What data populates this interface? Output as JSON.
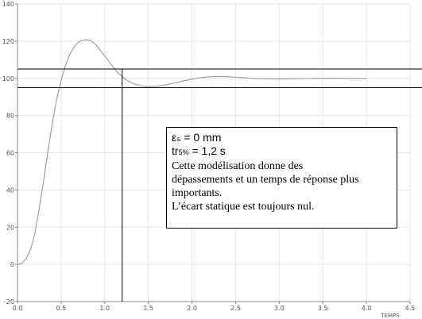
{
  "chart_data": {
    "type": "line",
    "title": "",
    "xlabel": "TEMPS",
    "ylabel": "",
    "xlim": [
      0,
      4.5
    ],
    "ylim": [
      -20,
      140
    ],
    "grid": true,
    "x_ticks": [
      "0.0",
      "0.5",
      "1.0",
      "1.5",
      "2.0",
      "2.5",
      "3.0",
      "3.5",
      "4.0",
      "4.5"
    ],
    "y_ticks": [
      "-20",
      "0",
      "20",
      "40",
      "60",
      "80",
      "100",
      "120",
      "140"
    ],
    "series": [
      {
        "color": "#a0a0a0",
        "x": [
          0,
          0.05,
          0.1,
          0.15,
          0.2,
          0.25,
          0.3,
          0.35,
          0.4,
          0.45,
          0.5,
          0.55,
          0.6,
          0.65,
          0.7,
          0.75,
          0.8,
          0.85,
          0.9,
          0.95,
          1.0,
          1.05,
          1.1,
          1.15,
          1.2,
          1.25,
          1.3,
          1.35,
          1.4,
          1.45,
          1.5,
          1.6,
          1.7,
          1.8,
          1.9,
          2.0,
          2.1,
          2.2,
          2.3,
          2.4,
          2.5,
          2.6,
          2.7,
          2.8,
          3.0,
          3.2,
          3.4,
          3.6,
          3.8,
          4.0
        ],
        "y": [
          0,
          0.5,
          3,
          8,
          17,
          30,
          45,
          61,
          76,
          89,
          99,
          107,
          113,
          117,
          119.5,
          120.5,
          120.8,
          120,
          118,
          115,
          112,
          109,
          106,
          103,
          101,
          99,
          97.8,
          96.8,
          96.2,
          95.8,
          95.7,
          95.8,
          96.5,
          97.5,
          98.6,
          99.6,
          100.4,
          100.8,
          101,
          100.9,
          100.6,
          100.3,
          100,
          99.8,
          99.7,
          99.8,
          100,
          100.1,
          100,
          100
        ]
      }
    ],
    "reference_lines": {
      "horizontal": [
        105,
        95
      ],
      "vertical": [
        1.2
      ]
    },
    "annotation": {
      "line1": "εₛ = 0 mm",
      "line2_main": "tr",
      "line2_sub": "5%",
      "line2_rest": " =  1,2 s",
      "line3": "Cette modélisation donne des",
      "line4": "dépassements et un temps de réponse plus",
      "line5": "importants.",
      "line6": "L’écart statique est toujours nul."
    }
  }
}
